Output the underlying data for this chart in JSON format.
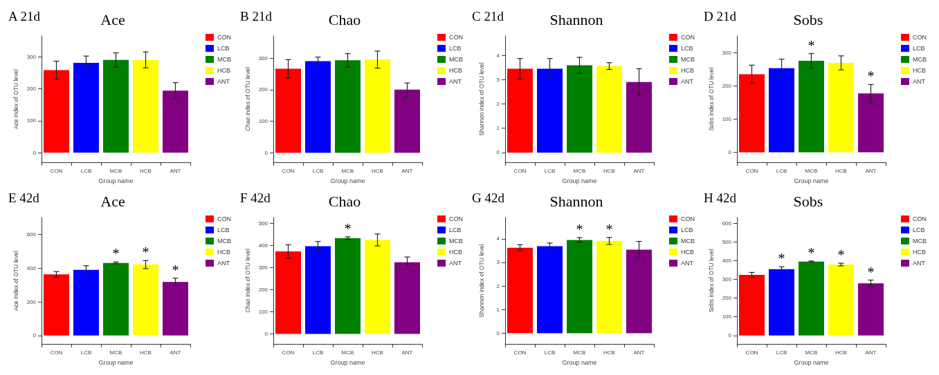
{
  "chart_data": [
    {
      "type": "bar",
      "title": "Ace",
      "xlabel": "Group name",
      "ylabel": "Ace index of OTU level",
      "categories": [
        "CON",
        "LCB",
        "MCB",
        "HCB",
        "ANT"
      ],
      "ylim": [
        -30,
        365
      ],
      "yticks": [
        0,
        100,
        200,
        300
      ],
      "legend": "top right",
      "series": [
        {
          "name": "CON",
          "color": "#ff0000",
          "values": [
            258,
            null,
            null,
            null,
            null
          ],
          "errors": [
            28,
            null,
            null,
            null,
            null
          ]
        },
        {
          "name": "LCB",
          "color": "#0000ff",
          "values": [
            null,
            281,
            null,
            null,
            null
          ],
          "errors": [
            null,
            21,
            null,
            null,
            null
          ]
        },
        {
          "name": "MCB",
          "color": "#008000",
          "values": [
            null,
            null,
            290,
            null,
            null
          ],
          "errors": [
            null,
            null,
            22,
            null,
            null
          ]
        },
        {
          "name": "HCB",
          "color": "#ffff00",
          "values": [
            null,
            null,
            null,
            290,
            null
          ],
          "errors": [
            null,
            null,
            null,
            25,
            null
          ]
        },
        {
          "name": "ANT",
          "color": "#800080",
          "values": [
            null,
            null,
            null,
            null,
            194
          ],
          "errors": [
            null,
            null,
            null,
            null,
            25
          ]
        }
      ],
      "annotations": [
        "A 21d"
      ]
    },
    {
      "type": "bar",
      "title": "Chao",
      "xlabel": "Group name",
      "ylabel": "Chao index of OTU level",
      "categories": [
        "CON",
        "LCB",
        "MCB",
        "HCB",
        "ANT"
      ],
      "ylim": [
        -30,
        370
      ],
      "yticks": [
        0,
        100,
        200,
        300
      ],
      "legend": "top right",
      "series": [
        {
          "name": "CON",
          "color": "#ff0000",
          "values": [
            266,
            null,
            null,
            null,
            null
          ],
          "errors": [
            29,
            null,
            null,
            null,
            null
          ]
        },
        {
          "name": "LCB",
          "color": "#0000ff",
          "values": [
            null,
            290,
            null,
            null,
            null
          ],
          "errors": [
            null,
            13,
            null,
            null,
            null
          ]
        },
        {
          "name": "MCB",
          "color": "#008000",
          "values": [
            null,
            null,
            293,
            null,
            null
          ],
          "errors": [
            null,
            null,
            21,
            null,
            null
          ]
        },
        {
          "name": "HCB",
          "color": "#ffff00",
          "values": [
            null,
            null,
            null,
            295,
            null
          ],
          "errors": [
            null,
            null,
            null,
            27,
            null
          ]
        },
        {
          "name": "ANT",
          "color": "#800080",
          "values": [
            null,
            null,
            null,
            null,
            200
          ],
          "errors": [
            null,
            null,
            null,
            null,
            21
          ]
        }
      ],
      "annotations": [
        "B 21d"
      ]
    },
    {
      "type": "bar",
      "title": "Shannon",
      "xlabel": "Group name",
      "ylabel": "Shannon index of OTU level",
      "categories": [
        "CON",
        "LCB",
        "MCB",
        "HCB",
        "ANT"
      ],
      "ylim": [
        -0.4,
        4.8
      ],
      "yticks": [
        0,
        1,
        2,
        3,
        4
      ],
      "legend": "top right",
      "series": [
        {
          "name": "CON",
          "color": "#ff0000",
          "values": [
            3.45,
            null,
            null,
            null,
            null
          ],
          "errors": [
            0.42,
            null,
            null,
            null,
            null
          ]
        },
        {
          "name": "LCB",
          "color": "#0000ff",
          "values": [
            null,
            3.45,
            null,
            null,
            null
          ],
          "errors": [
            null,
            0.42,
            null,
            null,
            null
          ]
        },
        {
          "name": "MCB",
          "color": "#008000",
          "values": [
            null,
            null,
            3.59,
            null,
            null
          ],
          "errors": [
            null,
            null,
            0.33,
            null,
            null
          ]
        },
        {
          "name": "HCB",
          "color": "#ffff00",
          "values": [
            null,
            null,
            null,
            3.56,
            null
          ],
          "errors": [
            null,
            null,
            null,
            0.14,
            null
          ]
        },
        {
          "name": "ANT",
          "color": "#800080",
          "values": [
            null,
            null,
            null,
            null,
            2.9
          ],
          "errors": [
            null,
            null,
            null,
            null,
            0.55
          ]
        }
      ],
      "annotations": [
        "C 21d"
      ]
    },
    {
      "type": "bar",
      "title": "Sobs",
      "xlabel": "Group name",
      "ylabel": "Sobs index of OTU level",
      "categories": [
        "CON",
        "LCB",
        "MCB",
        "HCB",
        "ANT"
      ],
      "ylim": [
        -30,
        350
      ],
      "yticks": [
        0,
        100,
        200,
        300
      ],
      "legend": "top right",
      "series": [
        {
          "name": "CON",
          "color": "#ff0000",
          "values": [
            235,
            null,
            null,
            null,
            null
          ],
          "errors": [
            27,
            null,
            null,
            null,
            null
          ]
        },
        {
          "name": "LCB",
          "color": "#0000ff",
          "values": [
            null,
            253,
            null,
            null,
            null
          ],
          "errors": [
            null,
            27,
            null,
            null,
            null
          ]
        },
        {
          "name": "MCB",
          "color": "#008000",
          "values": [
            null,
            null,
            275,
            null,
            null
          ],
          "errors": [
            null,
            null,
            22,
            null,
            null
          ]
        },
        {
          "name": "HCB",
          "color": "#ffff00",
          "values": [
            null,
            null,
            null,
            269,
            null
          ],
          "errors": [
            null,
            null,
            null,
            21,
            null
          ]
        },
        {
          "name": "ANT",
          "color": "#800080",
          "values": [
            null,
            null,
            null,
            null,
            177
          ],
          "errors": [
            null,
            null,
            null,
            null,
            27
          ]
        }
      ],
      "annotations": [
        "D 21d",
        {
          "text": "*",
          "x": "MCB",
          "y": 275
        },
        {
          "text": "*",
          "x": "ANT",
          "y": 177
        }
      ]
    },
    {
      "type": "bar",
      "title": "Ace",
      "xlabel": "Group name",
      "ylabel": "Ace index of OTU level",
      "categories": [
        "CON",
        "LCB",
        "MCB",
        "HCB",
        "ANT"
      ],
      "ylim": [
        -50,
        700
      ],
      "yticks": [
        0,
        200,
        400,
        600
      ],
      "legend": "top right",
      "series": [
        {
          "name": "CON",
          "color": "#ff0000",
          "values": [
            363,
            null,
            null,
            null,
            null
          ],
          "errors": [
            16,
            null,
            null,
            null,
            null
          ]
        },
        {
          "name": "LCB",
          "color": "#0000ff",
          "values": [
            null,
            390,
            null,
            null,
            null
          ],
          "errors": [
            null,
            24,
            null,
            null,
            null
          ]
        },
        {
          "name": "MCB",
          "color": "#008000",
          "values": [
            null,
            null,
            431,
            null,
            null
          ],
          "errors": [
            null,
            null,
            5,
            null,
            null
          ]
        },
        {
          "name": "HCB",
          "color": "#ffff00",
          "values": [
            null,
            null,
            null,
            421,
            null
          ],
          "errors": [
            null,
            null,
            null,
            24,
            null
          ]
        },
        {
          "name": "ANT",
          "color": "#800080",
          "values": [
            null,
            null,
            null,
            null,
            318
          ],
          "errors": [
            null,
            null,
            null,
            null,
            22
          ]
        }
      ],
      "annotations": [
        "E 42d",
        {
          "text": "*",
          "x": "MCB",
          "y": 431
        },
        {
          "text": "*",
          "x": "HCB",
          "y": 421
        },
        {
          "text": "*",
          "x": "ANT",
          "y": 318
        }
      ]
    },
    {
      "type": "bar",
      "title": "Chao",
      "xlabel": "Group name",
      "ylabel": "Chao index of OTU level",
      "categories": [
        "CON",
        "LCB",
        "MCB",
        "HCB",
        "ANT"
      ],
      "ylim": [
        -45,
        525
      ],
      "yticks": [
        0,
        100,
        200,
        300,
        400,
        500
      ],
      "legend": "top right",
      "series": [
        {
          "name": "CON",
          "color": "#ff0000",
          "values": [
            372,
            null,
            null,
            null,
            null
          ],
          "errors": [
            30,
            null,
            null,
            null,
            null
          ]
        },
        {
          "name": "LCB",
          "color": "#0000ff",
          "values": [
            null,
            396,
            null,
            null,
            null
          ],
          "errors": [
            null,
            21,
            null,
            null,
            null
          ]
        },
        {
          "name": "MCB",
          "color": "#008000",
          "values": [
            null,
            null,
            432,
            null,
            null
          ],
          "errors": [
            null,
            null,
            6,
            null,
            null
          ]
        },
        {
          "name": "HCB",
          "color": "#ffff00",
          "values": [
            null,
            null,
            null,
            424,
            null
          ],
          "errors": [
            null,
            null,
            null,
            27,
            null
          ]
        },
        {
          "name": "ANT",
          "color": "#800080",
          "values": [
            null,
            null,
            null,
            null,
            323
          ],
          "errors": [
            null,
            null,
            null,
            null,
            24
          ]
        }
      ],
      "annotations": [
        "F 42d",
        {
          "text": "*",
          "x": "MCB",
          "y": 432
        }
      ]
    },
    {
      "type": "bar",
      "title": "Shannon",
      "xlabel": "Group name",
      "ylabel": "Shannon index of OTU level",
      "categories": [
        "CON",
        "LCB",
        "MCB",
        "HCB",
        "ANT"
      ],
      "ylim": [
        -0.45,
        4.9
      ],
      "yticks": [
        0,
        1,
        2,
        3,
        4
      ],
      "legend": "top right",
      "series": [
        {
          "name": "CON",
          "color": "#ff0000",
          "values": [
            3.62,
            null,
            null,
            null,
            null
          ],
          "errors": [
            0.13,
            null,
            null,
            null,
            null
          ]
        },
        {
          "name": "LCB",
          "color": "#0000ff",
          "values": [
            null,
            3.69,
            null,
            null,
            null
          ],
          "errors": [
            null,
            0.13,
            null,
            null,
            null
          ]
        },
        {
          "name": "MCB",
          "color": "#008000",
          "values": [
            null,
            null,
            3.95,
            null,
            null
          ],
          "errors": [
            null,
            null,
            0.1,
            null,
            null
          ]
        },
        {
          "name": "HCB",
          "color": "#ffff00",
          "values": [
            null,
            null,
            null,
            3.91,
            null
          ],
          "errors": [
            null,
            null,
            null,
            0.15,
            null
          ]
        },
        {
          "name": "ANT",
          "color": "#800080",
          "values": [
            null,
            null,
            null,
            null,
            3.54
          ],
          "errors": [
            null,
            null,
            null,
            null,
            0.35
          ]
        }
      ],
      "annotations": [
        "G 42d",
        {
          "text": "*",
          "x": "MCB",
          "y": 3.95
        },
        {
          "text": "*",
          "x": "HCB",
          "y": 3.91
        }
      ]
    },
    {
      "type": "bar",
      "title": "Sobs",
      "xlabel": "Group name",
      "ylabel": "Sobs index of OTU level",
      "categories": [
        "CON",
        "LCB",
        "MCB",
        "HCB",
        "ANT"
      ],
      "ylim": [
        -45,
        630
      ],
      "yticks": [
        0,
        100,
        200,
        300,
        400,
        500,
        600
      ],
      "legend": "top right",
      "series": [
        {
          "name": "CON",
          "color": "#ff0000",
          "values": [
            324,
            null,
            null,
            null,
            null
          ],
          "errors": [
            13,
            null,
            null,
            null,
            null
          ]
        },
        {
          "name": "LCB",
          "color": "#0000ff",
          "values": [
            null,
            354,
            null,
            null,
            null
          ],
          "errors": [
            null,
            13,
            null,
            null,
            null
          ]
        },
        {
          "name": "MCB",
          "color": "#008000",
          "values": [
            null,
            null,
            395,
            null,
            null
          ],
          "errors": [
            null,
            null,
            3,
            null,
            null
          ]
        },
        {
          "name": "HCB",
          "color": "#ffff00",
          "values": [
            null,
            null,
            null,
            379,
            null
          ],
          "errors": [
            null,
            null,
            null,
            7,
            null
          ]
        },
        {
          "name": "ANT",
          "color": "#800080",
          "values": [
            null,
            null,
            null,
            null,
            279
          ],
          "errors": [
            null,
            null,
            null,
            null,
            17
          ]
        }
      ],
      "annotations": [
        "H 42d",
        {
          "text": "*",
          "x": "LCB",
          "y": 354
        },
        {
          "text": "*",
          "x": "MCB",
          "y": 395
        },
        {
          "text": "*",
          "x": "HCB",
          "y": 379
        },
        {
          "text": "*",
          "x": "ANT",
          "y": 279
        }
      ]
    }
  ]
}
